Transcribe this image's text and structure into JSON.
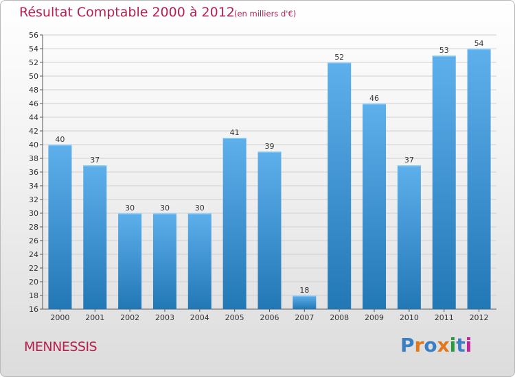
{
  "header": {
    "title": "Résultat Comptable 2000 à 2012",
    "subtitle": "(en milliers d'€)"
  },
  "footer": {
    "commune": "MENNESSIS",
    "logo_text": "Proxiti",
    "logo_colors": [
      "#3a7fc4",
      "#e2781c",
      "#3a7fc4",
      "#e2781c",
      "#2a9a3a",
      "#3a7fc4",
      "#c0249a"
    ]
  },
  "colors": {
    "title": "#b5204d",
    "bar_light": "#5eb0ec",
    "bar_dark": "#2277b5",
    "grid": "#d0d0d0"
  },
  "chart_data": {
    "type": "bar",
    "title": "Résultat Comptable 2000 à 2012",
    "subtitle": "(en milliers d'€)",
    "categories": [
      "2000",
      "2001",
      "2002",
      "2003",
      "2004",
      "2005",
      "2006",
      "2007",
      "2008",
      "2009",
      "2010",
      "2011",
      "2012"
    ],
    "values": [
      40,
      37,
      30,
      30,
      30,
      41,
      39,
      18,
      52,
      46,
      37,
      53,
      54
    ],
    "ylim": [
      16,
      56
    ],
    "ytick_step": 2,
    "grid": true,
    "data_labels": true,
    "xlabel": "",
    "ylabel": ""
  }
}
